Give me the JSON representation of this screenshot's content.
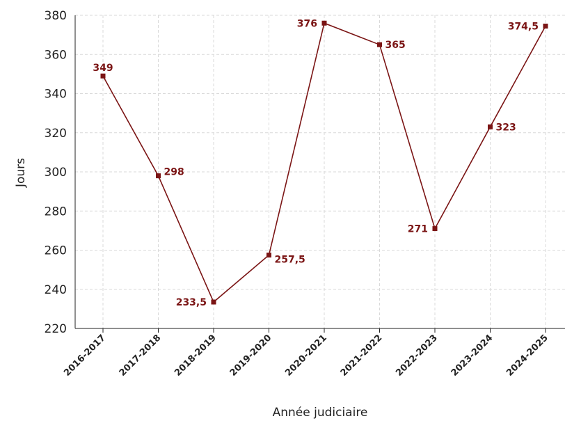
{
  "colors": {
    "series": "#7b1515",
    "grid": "#d9d9d9",
    "axis": "#222222"
  },
  "chart_data": {
    "type": "line",
    "title": "",
    "xlabel": "Année judiciaire",
    "ylabel": "Jours",
    "ylim": [
      220,
      380
    ],
    "yticks": [
      220,
      240,
      260,
      280,
      300,
      320,
      340,
      360,
      380
    ],
    "grid": true,
    "legend": "none",
    "categories": [
      "2016-2017",
      "2017-2018",
      "2018-2019",
      "2019-2020",
      "2020-2021",
      "2021-2022",
      "2022-2023",
      "2023-2024",
      "2024-2025"
    ],
    "series": [
      {
        "values": [
          349,
          298,
          233.5,
          257.5,
          376,
          365,
          271,
          323,
          374.5
        ],
        "labels": [
          "349",
          "298",
          "233,5",
          "257,5",
          "376",
          "365",
          "271",
          "323",
          "374,5"
        ],
        "color": "#7b1515",
        "marker": "square"
      }
    ]
  }
}
